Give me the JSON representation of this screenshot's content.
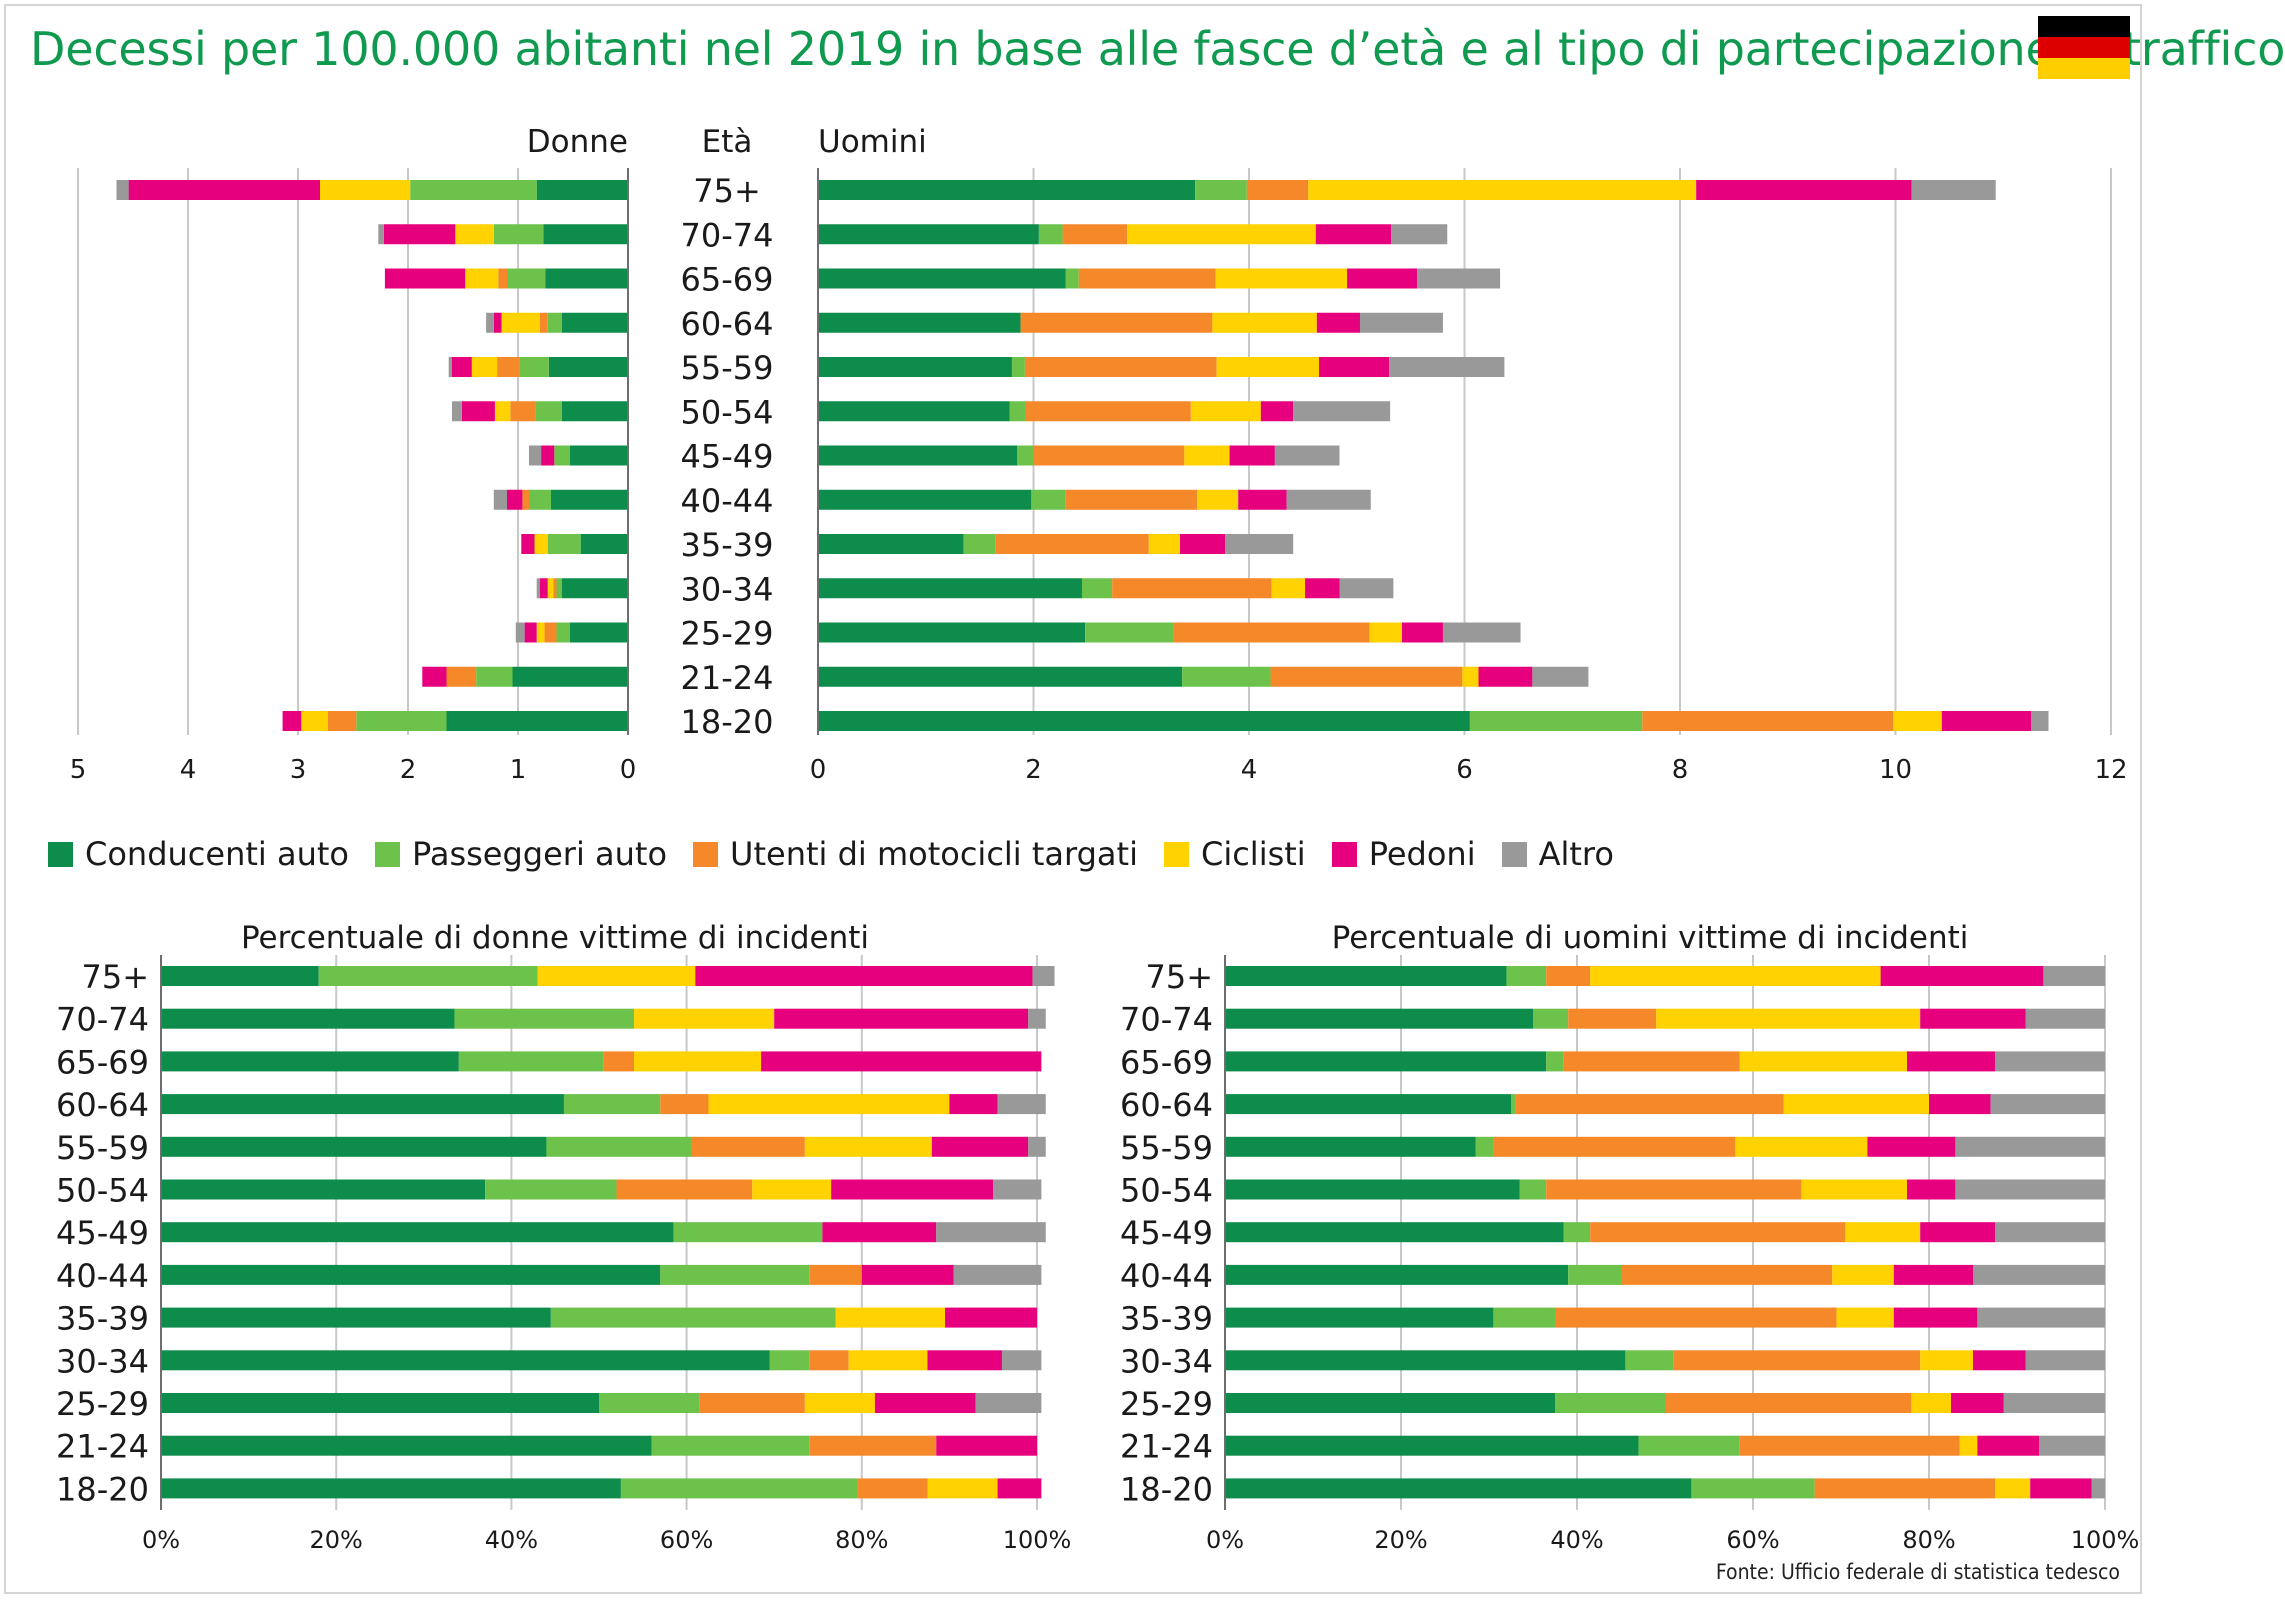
{
  "title": "Decessi per 100.000 abitanti nel 2019 in base alle fasce d’età e al tipo di partecipazione al traffico",
  "flag": {
    "name": "Germany",
    "colors": [
      "#000000",
      "#dd0000",
      "#ffce00"
    ]
  },
  "source": "Fonte: Ufficio federale di statistica tedesco",
  "colors": {
    "Conducenti auto": "#0d8c4c",
    "Passeggeri auto": "#6cc24a",
    "Utenti di motocicli targati": "#f5892a",
    "Ciclisti": "#ffd200",
    "Pedoni": "#e6007e",
    "Altro": "#999999"
  },
  "legend": [
    "Conducenti auto",
    "Passeggeri auto",
    "Utenti di motocicli targati",
    "Ciclisti",
    "Pedoni",
    "Altro"
  ],
  "chart_data": [
    {
      "type": "bar",
      "orientation": "horizontal-stacked",
      "title": "Donne",
      "center_label": "Età",
      "categories": [
        "75+",
        "70-74",
        "65-69",
        "60-64",
        "55-59",
        "50-54",
        "45-49",
        "40-44",
        "35-39",
        "30-34",
        "25-29",
        "21-24",
        "18-20"
      ],
      "xlim": [
        0,
        5
      ],
      "xticks": [
        "5",
        "4",
        "3",
        "2",
        "1",
        "0"
      ],
      "series": [
        {
          "name": "Conducenti auto",
          "values": [
            0.83,
            0.77,
            0.75,
            0.6,
            0.72,
            0.6,
            0.53,
            0.7,
            0.43,
            0.6,
            0.53,
            1.05,
            1.65
          ]
        },
        {
          "name": "Passeggeri auto",
          "values": [
            1.15,
            0.45,
            0.35,
            0.13,
            0.27,
            0.24,
            0.14,
            0.2,
            0.3,
            0.05,
            0.12,
            0.33,
            0.82
          ]
        },
        {
          "name": "Utenti di motocicli targati",
          "values": [
            0,
            0,
            0.08,
            0.07,
            0.2,
            0.23,
            0,
            0.06,
            0,
            0.03,
            0.11,
            0.27,
            0.26
          ]
        },
        {
          "name": "Ciclisti",
          "values": [
            0.82,
            0.35,
            0.3,
            0.35,
            0.23,
            0.14,
            0,
            0,
            0.12,
            0.05,
            0.07,
            0,
            0.24
          ]
        },
        {
          "name": "Pedoni",
          "values": [
            1.74,
            0.65,
            0.73,
            0.07,
            0.18,
            0.3,
            0.12,
            0.14,
            0.12,
            0.07,
            0.11,
            0.22,
            0.17
          ]
        },
        {
          "name": "Altro",
          "values": [
            0.11,
            0.05,
            0,
            0.07,
            0.03,
            0.09,
            0.11,
            0.12,
            0,
            0.03,
            0.08,
            0,
            0
          ]
        }
      ]
    },
    {
      "type": "bar",
      "orientation": "horizontal-stacked",
      "title": "Uomini",
      "categories": [
        "75+",
        "70-74",
        "65-69",
        "60-64",
        "55-59",
        "50-54",
        "45-49",
        "40-44",
        "35-39",
        "30-34",
        "25-29",
        "21-24",
        "18-20"
      ],
      "xlim": [
        0,
        12
      ],
      "xticks": [
        "0",
        "2",
        "4",
        "6",
        "8",
        "10",
        "12"
      ],
      "series": [
        {
          "name": "Conducenti auto",
          "values": [
            3.5,
            2.05,
            2.3,
            1.88,
            1.8,
            1.78,
            1.85,
            1.98,
            1.35,
            2.45,
            2.48,
            3.38,
            6.05
          ]
        },
        {
          "name": "Passeggeri auto",
          "values": [
            0.48,
            0.22,
            0.12,
            0,
            0.12,
            0.15,
            0.15,
            0.32,
            0.3,
            0.28,
            0.82,
            0.82,
            1.6
          ]
        },
        {
          "name": "Utenti di motocicli targati",
          "values": [
            0.57,
            0.6,
            1.27,
            1.78,
            1.78,
            1.53,
            1.4,
            1.22,
            1.42,
            1.48,
            1.82,
            1.78,
            2.33
          ]
        },
        {
          "name": "Ciclisti",
          "values": [
            3.6,
            1.75,
            1.22,
            0.97,
            0.95,
            0.65,
            0.42,
            0.38,
            0.29,
            0.31,
            0.3,
            0.15,
            0.45
          ]
        },
        {
          "name": "Pedoni",
          "values": [
            2.0,
            0.7,
            0.65,
            0.4,
            0.65,
            0.3,
            0.42,
            0.45,
            0.42,
            0.32,
            0.38,
            0.5,
            0.83
          ]
        },
        {
          "name": "Altro",
          "values": [
            0.78,
            0.52,
            0.77,
            0.77,
            1.07,
            0.9,
            0.6,
            0.78,
            0.63,
            0.5,
            0.72,
            0.52,
            0.16
          ]
        }
      ]
    },
    {
      "type": "bar",
      "orientation": "horizontal-stacked-percent",
      "title": "Percentuale di donne vittime di incidenti",
      "categories": [
        "75+",
        "70-74",
        "65-69",
        "60-64",
        "55-59",
        "50-54",
        "45-49",
        "40-44",
        "35-39",
        "30-34",
        "25-29",
        "21-24",
        "18-20"
      ],
      "xlim": [
        0,
        100
      ],
      "xticks": [
        "0%",
        "20%",
        "40%",
        "60%",
        "80%",
        "100%"
      ],
      "series": [
        {
          "name": "Conducenti auto",
          "values": [
            18,
            33.5,
            34,
            46,
            44,
            37,
            58.5,
            57,
            44.5,
            69.5,
            50,
            56,
            52.5
          ]
        },
        {
          "name": "Passeggeri auto",
          "values": [
            25,
            20.5,
            16.5,
            11,
            16.5,
            15,
            17,
            17,
            32.5,
            4.5,
            11.5,
            18,
            27
          ]
        },
        {
          "name": "Utenti di motocicli targati",
          "values": [
            0,
            0,
            3.5,
            5.5,
            13,
            15.5,
            0,
            6,
            0,
            4.5,
            12,
            14.5,
            8
          ]
        },
        {
          "name": "Ciclisti",
          "values": [
            18,
            16,
            14.5,
            27.5,
            14.5,
            9,
            0,
            0,
            12.5,
            9,
            8,
            0,
            8
          ]
        },
        {
          "name": "Pedoni",
          "values": [
            38.5,
            29,
            32,
            5.5,
            11,
            18.5,
            13,
            10.5,
            10.5,
            8.5,
            11.5,
            11.5,
            5
          ]
        },
        {
          "name": "Altro",
          "values": [
            2.5,
            2,
            0,
            5.5,
            2,
            5.5,
            12.5,
            10,
            0,
            4.5,
            7.5,
            0,
            0
          ]
        }
      ]
    },
    {
      "type": "bar",
      "orientation": "horizontal-stacked-percent",
      "title": "Percentuale di uomini vittime di incidenti",
      "categories": [
        "75+",
        "70-74",
        "65-69",
        "60-64",
        "55-59",
        "50-54",
        "45-49",
        "40-44",
        "35-39",
        "30-34",
        "25-29",
        "21-24",
        "18-20"
      ],
      "xlim": [
        0,
        100
      ],
      "xticks": [
        "0%",
        "20%",
        "40%",
        "60%",
        "80%",
        "100%"
      ],
      "series": [
        {
          "name": "Conducenti auto",
          "values": [
            32,
            35,
            36.5,
            32.5,
            28.5,
            33.5,
            38.5,
            39,
            30.5,
            45.5,
            37.5,
            47,
            53
          ]
        },
        {
          "name": "Passeggeri auto",
          "values": [
            4.5,
            4,
            2,
            0.5,
            2,
            3,
            3,
            6,
            7,
            5.5,
            12.5,
            11.5,
            14
          ]
        },
        {
          "name": "Utenti di motocicli targati",
          "values": [
            5,
            10,
            20,
            30.5,
            27.5,
            29,
            29,
            24,
            32,
            28,
            28,
            25,
            20.5
          ]
        },
        {
          "name": "Ciclisti",
          "values": [
            33,
            30,
            19,
            16.5,
            15,
            12,
            8.5,
            7,
            6.5,
            6,
            4.5,
            2,
            4
          ]
        },
        {
          "name": "Pedoni",
          "values": [
            18.5,
            12,
            10,
            7,
            10,
            5.5,
            8.5,
            9,
            9.5,
            6,
            6,
            7,
            7
          ]
        },
        {
          "name": "Altro",
          "values": [
            7,
            9,
            12.5,
            13,
            17,
            17,
            12.5,
            15,
            14.5,
            9,
            11.5,
            7.5,
            1.5
          ]
        }
      ]
    }
  ]
}
